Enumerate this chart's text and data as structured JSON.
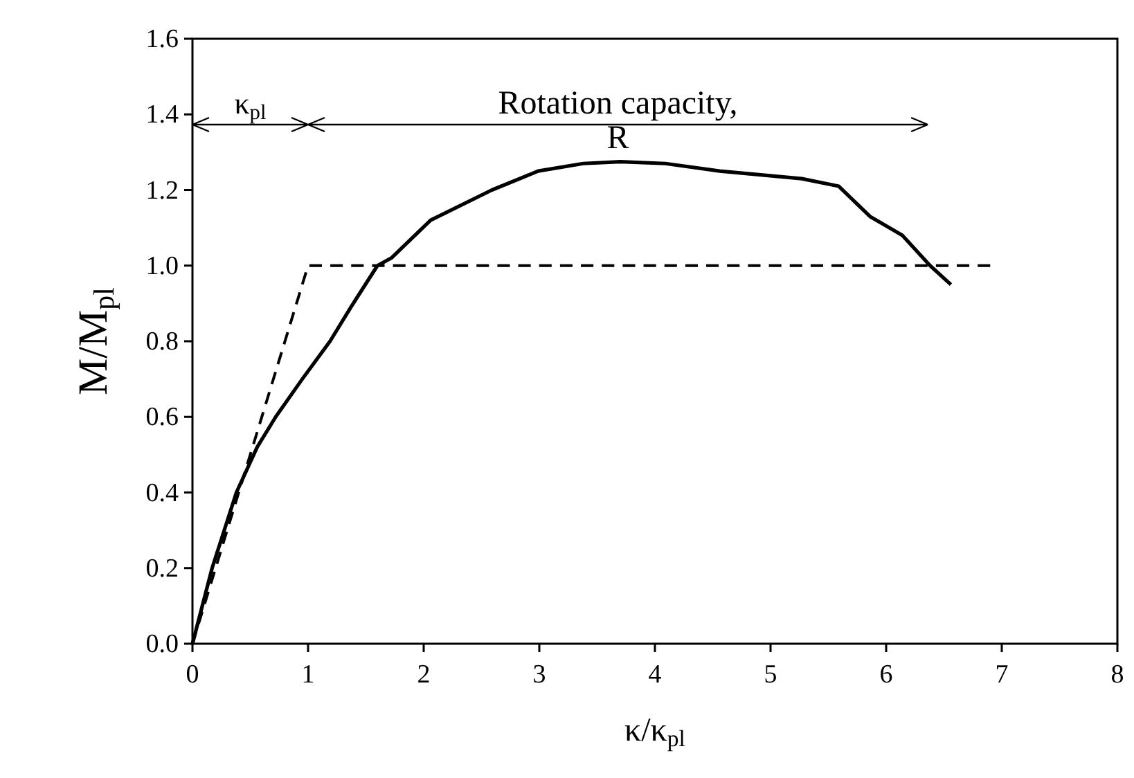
{
  "chart_data": {
    "type": "line",
    "xlabel": "κ/κ$_{pl}$",
    "ylabel": "M/M$_{pl}$",
    "xlim": [
      0,
      8
    ],
    "xticks": [
      0,
      1,
      2,
      3,
      4,
      5,
      6,
      7,
      8
    ],
    "ylim": [
      0,
      1.6
    ],
    "yticks": [
      {
        "value": 0,
        "label": "0.0"
      },
      {
        "value": 0.2,
        "label": "0.2"
      },
      {
        "value": 0.4,
        "label": "0.4"
      },
      {
        "value": 0.6,
        "label": "0.6"
      },
      {
        "value": 0.8,
        "label": "0.8"
      },
      {
        "value": 1,
        "label": "1.0"
      },
      {
        "value": 1.2,
        "label": "1.2"
      },
      {
        "value": 1.4,
        "label": "1.4"
      },
      {
        "value": 1.6,
        "label": "1.6"
      }
    ],
    "grid": false,
    "series": [
      {
        "color": "#000000",
        "line_style": "solid",
        "x": [
          0,
          0.17,
          0.38,
          0.56,
          0.72,
          0.95,
          1.19,
          1.37,
          1.6,
          1.72,
          2.06,
          2.59,
          2.99,
          3.38,
          3.7,
          4.09,
          4.56,
          5.27,
          5.59,
          5.86,
          6.14,
          6.38,
          6.56
        ],
        "values": [
          0,
          0.2,
          0.4,
          0.52,
          0.6,
          0.7,
          0.8,
          0.89,
          1.0,
          1.02,
          1.12,
          1.2,
          1.25,
          1.27,
          1.275,
          1.27,
          1.25,
          1.23,
          1.21,
          1.13,
          1.08,
          1.0,
          0.95
        ]
      },
      {
        "color": "#000000",
        "line_style": "dashed",
        "x": [
          0,
          1,
          6.9
        ],
        "values": [
          0,
          1,
          1
        ]
      }
    ],
    "annotations": [
      "κ$_{pl}$",
      "Rotation capacity,\nR"
    ]
  }
}
